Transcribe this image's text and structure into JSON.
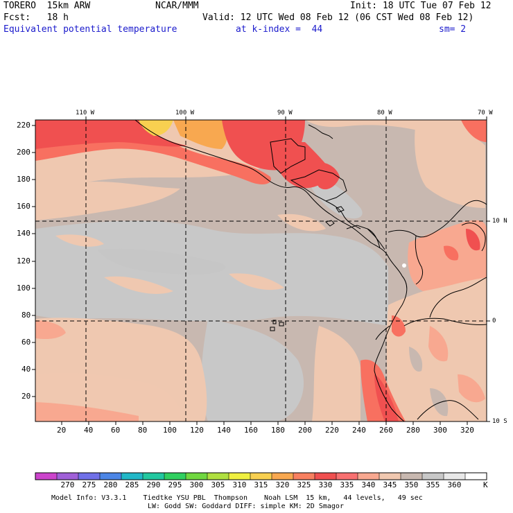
{
  "header": {
    "model": "TORERO  15km ARW",
    "center": "NCAR/MMM",
    "init": "Init: 18 UTC Tue 07 Feb 12",
    "fcst": "Fcst:   18 h",
    "valid": "Valid: 12 UTC Wed 08 Feb 12 (06 CST Wed 08 Feb 12)",
    "field": "Equivalent potential temperature",
    "level": "at k-index =  44",
    "smooth": "sm= 2"
  },
  "axes": {
    "top_lon_labels": [
      "110 W",
      "100 W",
      "90 W",
      "80 W",
      "70 W"
    ],
    "right_lat_labels": [
      "10 N",
      "0",
      "10 S"
    ],
    "left_y_ticks": [
      "220",
      "200",
      "180",
      "160",
      "140",
      "120",
      "100",
      "80",
      "60",
      "40",
      "20"
    ],
    "bottom_x_ticks": [
      "20",
      "40",
      "60",
      "80",
      "100",
      "120",
      "140",
      "160",
      "180",
      "200",
      "220",
      "240",
      "260",
      "280",
      "300",
      "320"
    ]
  },
  "colorbar": {
    "unit": "K",
    "labels": [
      "270",
      "275",
      "280",
      "285",
      "290",
      "295",
      "300",
      "305",
      "310",
      "315",
      "320",
      "325",
      "330",
      "335",
      "340",
      "345",
      "350",
      "355",
      "360"
    ],
    "colors": [
      "#cc44cc",
      "#a060d8",
      "#7070e8",
      "#4c86e6",
      "#22b8c8",
      "#22c8a0",
      "#30d060",
      "#70d840",
      "#b0e040",
      "#f0f040",
      "#f8d050",
      "#f8a850",
      "#f88060",
      "#f05050",
      "#f87070",
      "#f8a890",
      "#f0c8b0",
      "#c8b8b0",
      "#c8c8c8",
      "#e8e8e8",
      "#ffffff"
    ]
  },
  "footer": {
    "line1": "Model Info: V3.3.1    Tiedtke YSU PBL  Thompson    Noah LSM  15 km,   44 levels,   49 sec",
    "line2": "LW: Godd SW: Goddard DIFF: simple KM: 2D Smagor"
  },
  "icons": {
    "map": "equivalent-potential-temperature-map"
  }
}
